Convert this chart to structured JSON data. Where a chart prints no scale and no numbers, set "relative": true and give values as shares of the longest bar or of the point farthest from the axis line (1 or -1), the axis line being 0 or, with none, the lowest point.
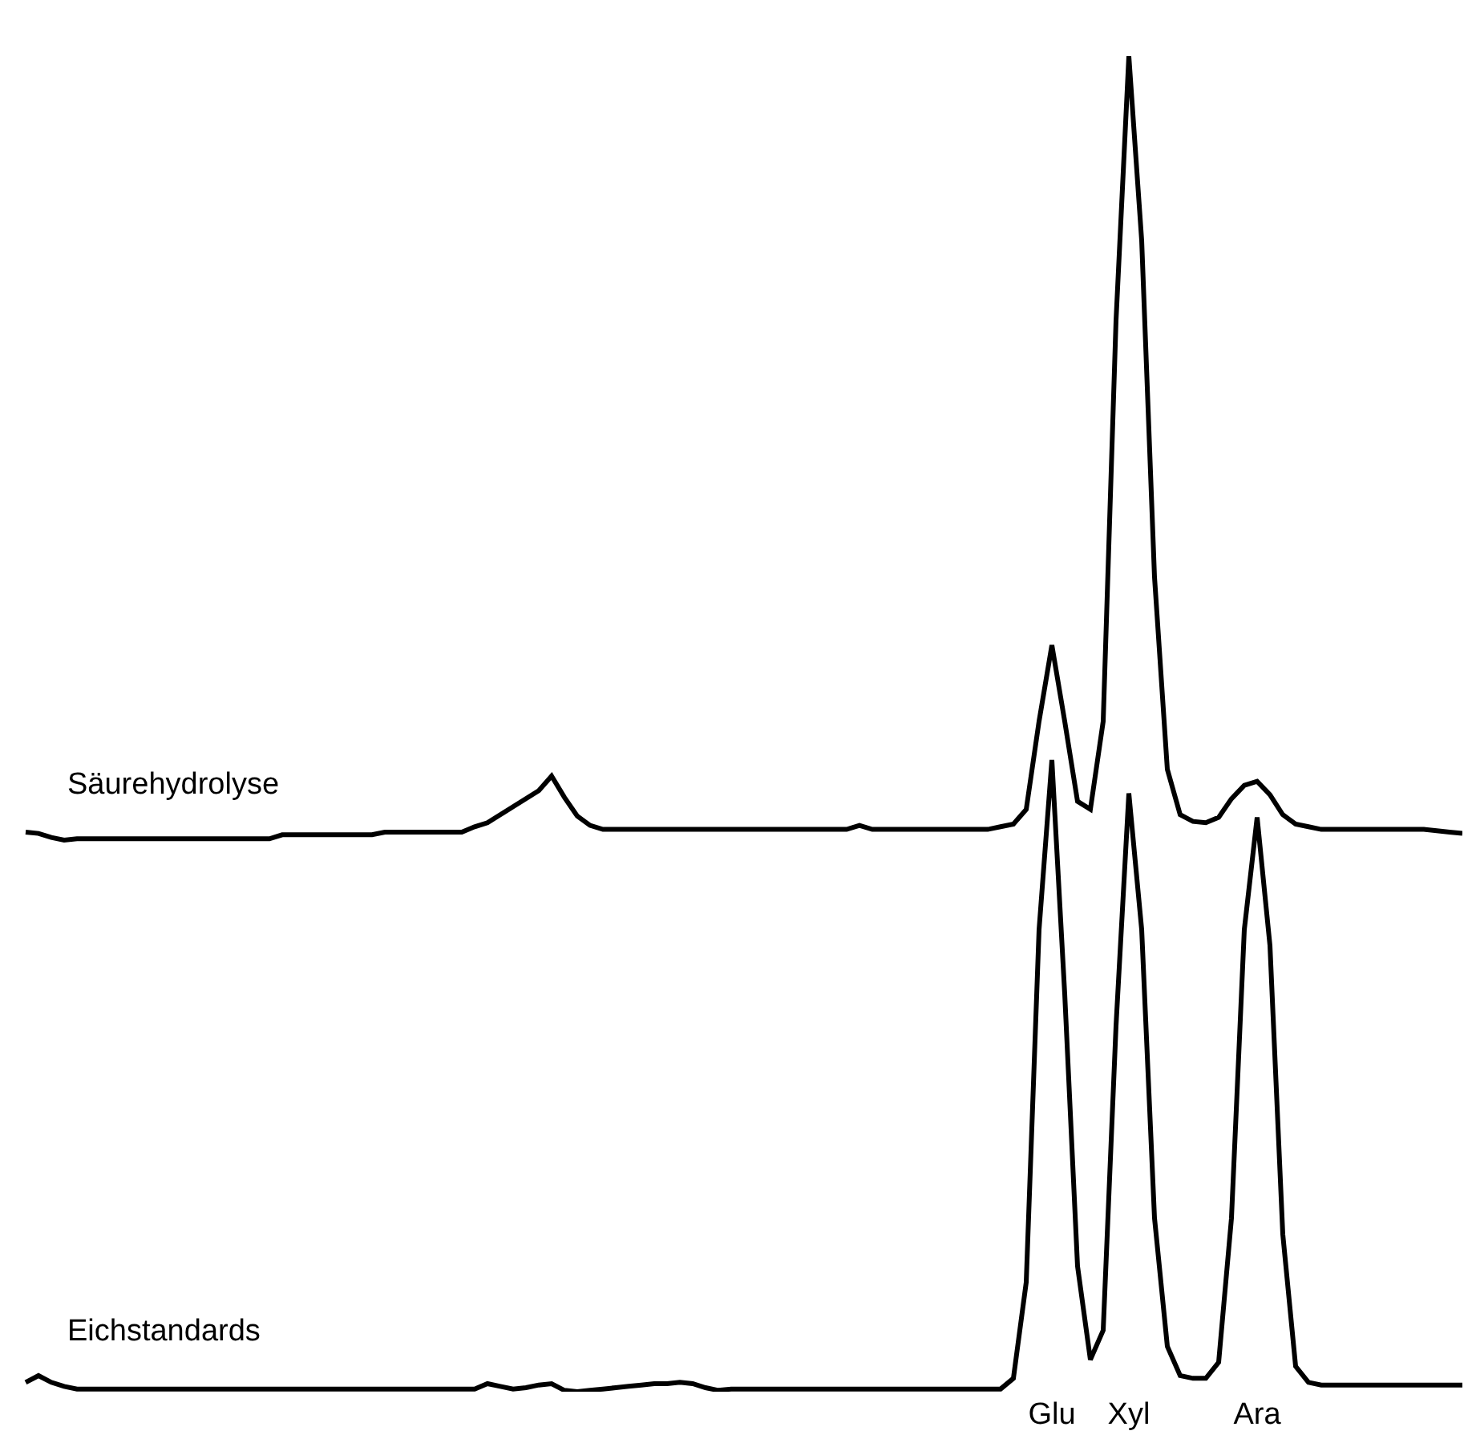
{
  "chart_data": {
    "type": "line",
    "relative": true,
    "legend": false,
    "grid": false,
    "tick_labels": "x",
    "categories": [
      null,
      null,
      null,
      null,
      null,
      null,
      null,
      null,
      null,
      null,
      null,
      null,
      null,
      null,
      null,
      null,
      null,
      null,
      null,
      null,
      null,
      null,
      null,
      null,
      null,
      null,
      null,
      null,
      null,
      null,
      null,
      null,
      null,
      null,
      null,
      null,
      null,
      null,
      null,
      null,
      null,
      null,
      null,
      null,
      null,
      null,
      null,
      null,
      null,
      null,
      null,
      null,
      null,
      null,
      null,
      null,
      null,
      null,
      null,
      null,
      null,
      null,
      null,
      null,
      null,
      null,
      null,
      null,
      null,
      null,
      null,
      null,
      null,
      null,
      null,
      null,
      null,
      null,
      null,
      null,
      null,
      "Glu",
      null,
      null,
      null,
      null,
      null,
      "Xyl",
      null,
      null,
      null,
      null,
      null,
      null,
      null,
      null,
      null,
      "Ara",
      null,
      null,
      null,
      null,
      null,
      null,
      null,
      null,
      null,
      null,
      null,
      null,
      null,
      null,
      null,
      null
    ],
    "series": [
      {
        "name": "Säurehydrolyse",
        "color": "#000000",
        "values": [
          null,
          0.419,
          0.418,
          0.415,
          0.413,
          0.414,
          0.414,
          0.414,
          0.414,
          0.414,
          0.414,
          0.414,
          0.414,
          0.414,
          0.414,
          0.414,
          0.414,
          0.414,
          0.414,
          0.414,
          0.414,
          0.417,
          0.417,
          0.417,
          0.417,
          0.417,
          0.417,
          0.417,
          0.417,
          0.419,
          0.419,
          0.419,
          0.419,
          0.419,
          0.419,
          0.419,
          0.423,
          0.426,
          0.432,
          0.438,
          0.444,
          0.45,
          0.461,
          0.445,
          0.431,
          0.424,
          0.421,
          0.421,
          0.421,
          0.421,
          0.421,
          0.421,
          0.421,
          0.421,
          0.421,
          0.421,
          0.421,
          0.421,
          0.421,
          0.421,
          0.421,
          0.421,
          0.421,
          0.421,
          0.421,
          0.421,
          0.424,
          0.421,
          0.421,
          0.421,
          0.421,
          0.421,
          0.421,
          0.421,
          0.421,
          0.421,
          0.421,
          0.423,
          0.425,
          0.436,
          0.502,
          0.559,
          0.502,
          0.442,
          0.436,
          0.502,
          0.802,
          1.0,
          0.862,
          0.61,
          0.466,
          0.432,
          0.427,
          0.426,
          0.43,
          0.444,
          0.454,
          0.457,
          0.447,
          0.432,
          0.425,
          0.423,
          0.421,
          0.421,
          0.421,
          0.421,
          0.421,
          0.421,
          0.421,
          0.421,
          0.421,
          0.42,
          0.419,
          0.418
        ]
      },
      {
        "name": "Eichstandards",
        "color": "#000000",
        "values": [
          null,
          0.007,
          0.012,
          0.007,
          0.004,
          0.002,
          0.002,
          0.002,
          0.002,
          0.002,
          0.002,
          0.002,
          0.002,
          0.002,
          0.002,
          0.002,
          0.002,
          0.002,
          0.002,
          0.002,
          0.002,
          0.002,
          0.002,
          0.002,
          0.002,
          0.002,
          0.002,
          0.002,
          0.002,
          0.002,
          0.002,
          0.002,
          0.002,
          0.002,
          0.002,
          0.002,
          0.002,
          0.006,
          0.004,
          0.002,
          0.003,
          0.005,
          0.006,
          0.001,
          0.0,
          0.001,
          0.002,
          0.003,
          0.004,
          0.005,
          0.006,
          0.006,
          0.007,
          0.006,
          0.003,
          0.001,
          0.002,
          0.002,
          0.002,
          0.002,
          0.002,
          0.002,
          0.002,
          0.002,
          0.002,
          0.002,
          0.002,
          0.002,
          0.002,
          0.002,
          0.002,
          0.002,
          0.002,
          0.002,
          0.002,
          0.002,
          0.002,
          0.002,
          0.01,
          0.082,
          0.346,
          0.473,
          0.298,
          0.094,
          0.024,
          0.046,
          0.274,
          0.448,
          0.346,
          0.13,
          0.034,
          0.012,
          0.01,
          0.01,
          0.022,
          0.13,
          0.346,
          0.43,
          0.334,
          0.118,
          0.019,
          0.007,
          0.005,
          0.005,
          0.005,
          0.005,
          0.005,
          0.005,
          0.005,
          0.005,
          0.005,
          0.005,
          0.005,
          0.005
        ]
      }
    ]
  }
}
